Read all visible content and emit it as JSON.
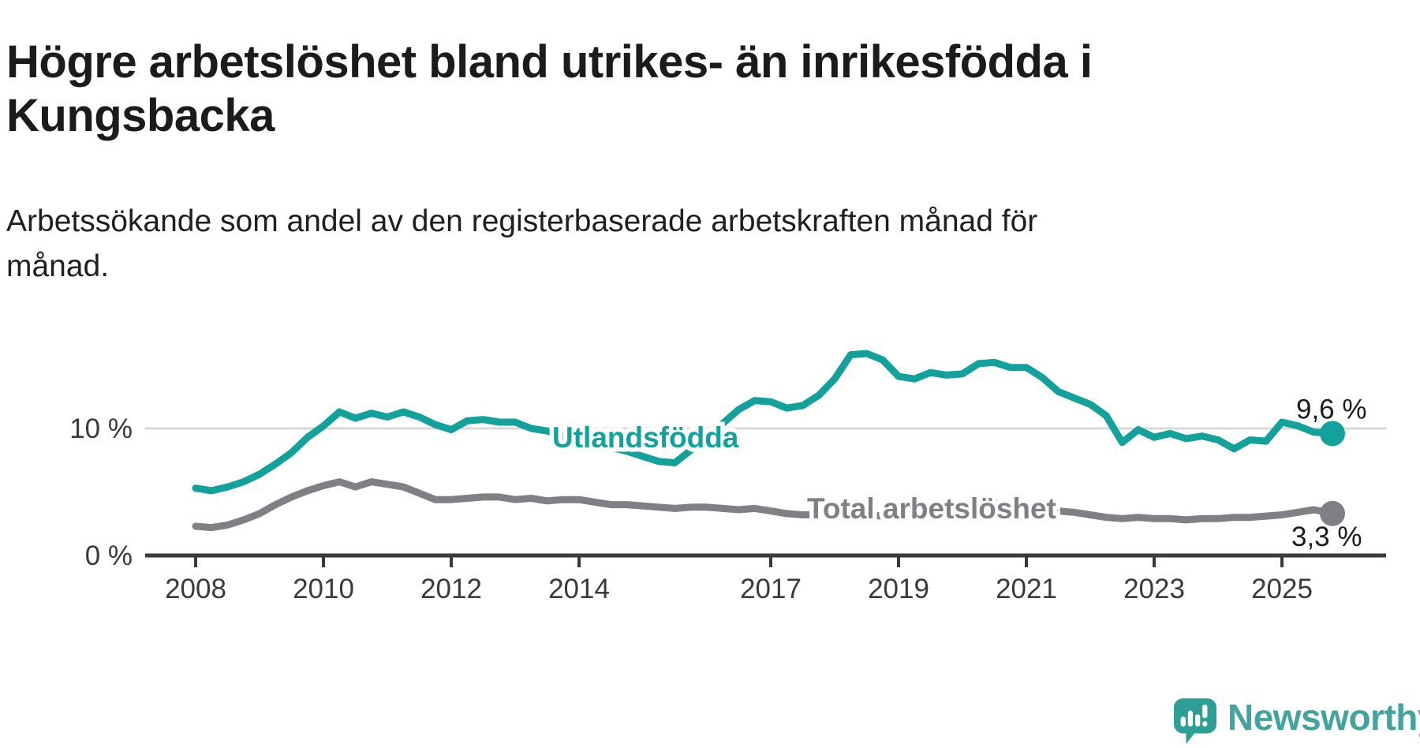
{
  "header": {
    "title_lines": [
      "Högre arbetslöshet bland utrikes- än inrikesfödda i",
      "Kungsbacka"
    ],
    "subtitle_lines": [
      "Arbetssökande som andel av den registerbaserade arbetskraften månad för",
      "månad."
    ]
  },
  "axes": {
    "y_ticks": [
      {
        "value": 10,
        "label": "10 %"
      },
      {
        "value": 0,
        "label": "0 %"
      }
    ],
    "x_tick_years": [
      {
        "year": 2008,
        "label": "2008"
      },
      {
        "year": 2010,
        "label": "2010"
      },
      {
        "year": 2012,
        "label": "2012"
      },
      {
        "year": 2014,
        "label": "2014"
      },
      {
        "year": 2017,
        "label": "2017"
      },
      {
        "year": 2019,
        "label": "2019"
      },
      {
        "year": 2021,
        "label": "2021"
      },
      {
        "year": 2023,
        "label": "2023"
      },
      {
        "year": 2025,
        "label": "2025"
      }
    ]
  },
  "colors": {
    "accent_teal": "#12a19b",
    "series_gray": "#7f7f85",
    "axis": "#3a3a3a",
    "gridline": "#d9d9d9",
    "text_dark": "#1b1b1b",
    "logo_teal": "#43a49e",
    "logo_icon_teal": "#2f9e96"
  },
  "chart_data": {
    "type": "line",
    "title": "Högre arbetslöshet bland utrikes- än inrikesfödda i Kungsbacka",
    "subtitle": "Arbetssökande som andel av den registerbaserade arbetskraften månad för månad.",
    "unit": "%",
    "ylim": [
      0,
      16.5
    ],
    "xlim": [
      2008,
      2025.79
    ],
    "gridlines_y": [
      10
    ],
    "legend_position": "inline-labels",
    "x": [
      2008,
      2008.25,
      2008.5,
      2008.75,
      2009,
      2009.25,
      2009.5,
      2009.75,
      2010,
      2010.25,
      2010.5,
      2010.75,
      2011,
      2011.25,
      2011.5,
      2011.75,
      2012,
      2012.25,
      2012.5,
      2012.75,
      2013,
      2013.25,
      2013.5,
      2013.75,
      2014,
      2014.25,
      2014.5,
      2014.75,
      2015,
      2015.25,
      2015.5,
      2015.75,
      2016,
      2016.25,
      2016.5,
      2016.75,
      2017,
      2017.25,
      2017.5,
      2017.75,
      2018,
      2018.25,
      2018.5,
      2018.75,
      2019,
      2019.25,
      2019.5,
      2019.75,
      2020,
      2020.25,
      2020.5,
      2020.75,
      2021,
      2021.25,
      2021.5,
      2021.75,
      2022,
      2022.25,
      2022.5,
      2022.75,
      2023,
      2023.25,
      2023.5,
      2023.75,
      2024,
      2024.25,
      2024.5,
      2024.75,
      2025,
      2025.25,
      2025.5,
      2025.79
    ],
    "series": [
      {
        "name": "Utlandsfödda",
        "color": "#12a19b",
        "values": [
          5.3,
          5.1,
          5.4,
          5.8,
          6.4,
          7.2,
          8.1,
          9.3,
          10.2,
          11.3,
          10.8,
          11.2,
          10.9,
          11.3,
          10.9,
          10.3,
          9.9,
          10.6,
          10.7,
          10.5,
          10.5,
          10.0,
          9.8,
          9.4,
          9.1,
          8.8,
          8.5,
          8.2,
          7.8,
          7.4,
          7.3,
          8.3,
          9.4,
          10.4,
          11.5,
          12.2,
          12.1,
          11.6,
          11.8,
          12.6,
          13.9,
          15.8,
          15.9,
          15.4,
          14.1,
          13.9,
          14.4,
          14.2,
          14.3,
          15.1,
          15.2,
          14.8,
          14.8,
          14.0,
          12.9,
          12.4,
          11.9,
          11.0,
          8.9,
          9.9,
          9.3,
          9.6,
          9.2,
          9.4,
          9.1,
          8.4,
          9.1,
          9.0,
          10.5,
          10.2,
          9.7,
          9.6
        ],
        "end_label": "9,6 %",
        "end_value": 9.6
      },
      {
        "name": "Total arbetslöshet",
        "color": "#7f7f85",
        "values": [
          2.3,
          2.2,
          2.4,
          2.8,
          3.3,
          4.0,
          4.6,
          5.1,
          5.5,
          5.8,
          5.4,
          5.8,
          5.6,
          5.4,
          4.9,
          4.4,
          4.4,
          4.5,
          4.6,
          4.6,
          4.4,
          4.5,
          4.3,
          4.4,
          4.4,
          4.2,
          4.0,
          4.0,
          3.9,
          3.8,
          3.7,
          3.8,
          3.8,
          3.7,
          3.6,
          3.7,
          3.5,
          3.3,
          3.2,
          3.2,
          3.2,
          3.1,
          3.2,
          3.1,
          3.2,
          3.1,
          3.2,
          3.3,
          3.4,
          3.9,
          4.1,
          4.0,
          3.9,
          3.7,
          3.5,
          3.4,
          3.2,
          3.0,
          2.9,
          3.0,
          2.9,
          2.9,
          2.8,
          2.9,
          2.9,
          3.0,
          3.0,
          3.1,
          3.2,
          3.4,
          3.6,
          3.3
        ],
        "end_label": "3,3 %",
        "end_value": 3.3
      }
    ]
  },
  "footer": {
    "brand": "Newsworthy"
  }
}
